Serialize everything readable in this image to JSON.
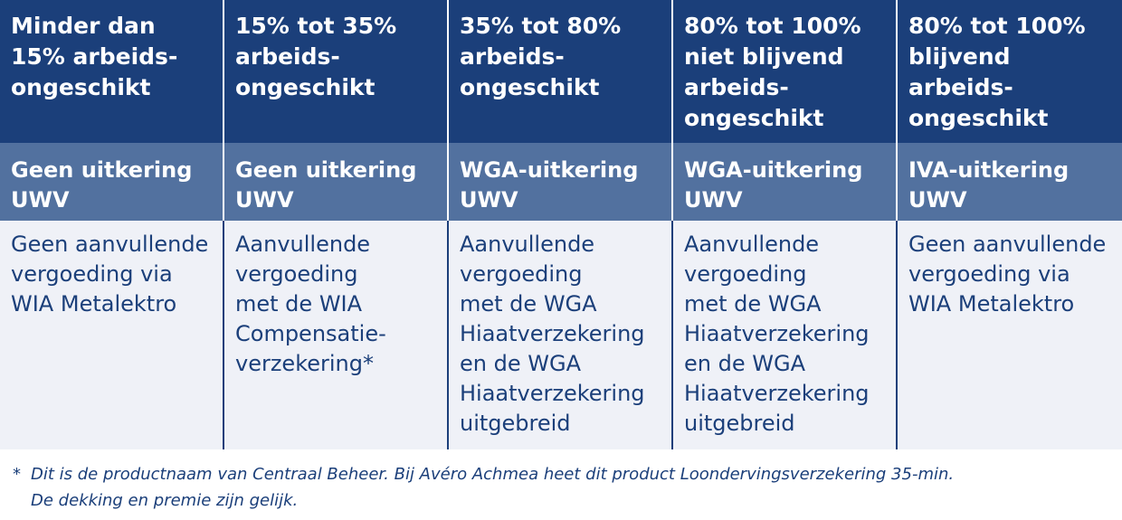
{
  "columns": [
    {
      "header": "Minder dan\n15% arbeids-\nongeschikt",
      "benefit": "Geen uitkering\nUWV",
      "coverage": "Geen aanvullende\nvergoeding via\nWIA Metalektro"
    },
    {
      "header": "15% tot 35%\narbeids-\nongeschikt",
      "benefit": "Geen uitkering\nUWV",
      "coverage": "Aanvullende\nvergoeding\nmet de WIA\nCompensatie-\nverzekering*"
    },
    {
      "header": "35% tot 80%\narbeids-\nongeschikt",
      "benefit": "WGA-uitkering\nUWV",
      "coverage": "Aanvullende\nvergoeding\nmet de WGA\nHiaatverzekering\nen de WGA\nHiaatverzekering\nuitgebreid"
    },
    {
      "header": "80% tot 100%\nniet blijvend\narbeids-\nongeschikt",
      "benefit": "WGA-uitkering\nUWV",
      "coverage": "Aanvullende\nvergoeding\nmet de WGA\nHiaatverzekering\nen de WGA\nHiaatverzekering\nuitgebreid"
    },
    {
      "header": "80% tot 100%\nblijvend\narbeids-\nongeschikt",
      "benefit": "IVA-uitkering\nUWV",
      "coverage": "Geen aanvullende\nvergoeding via\nWIA Metalektro"
    }
  ],
  "footnote": {
    "marker": "*",
    "text": "Dit is de productnaam van Centraal Beheer. Bij Avéro Achmea heet dit product Loondervingsverzekering 35-min.\nDe dekking en premie zijn gelijk."
  },
  "colors": {
    "header_bg": "#1b3f7a",
    "subheader_bg": "#52719f",
    "body_bg": "#eff1f7",
    "text_dark": "#1b3f7a"
  }
}
